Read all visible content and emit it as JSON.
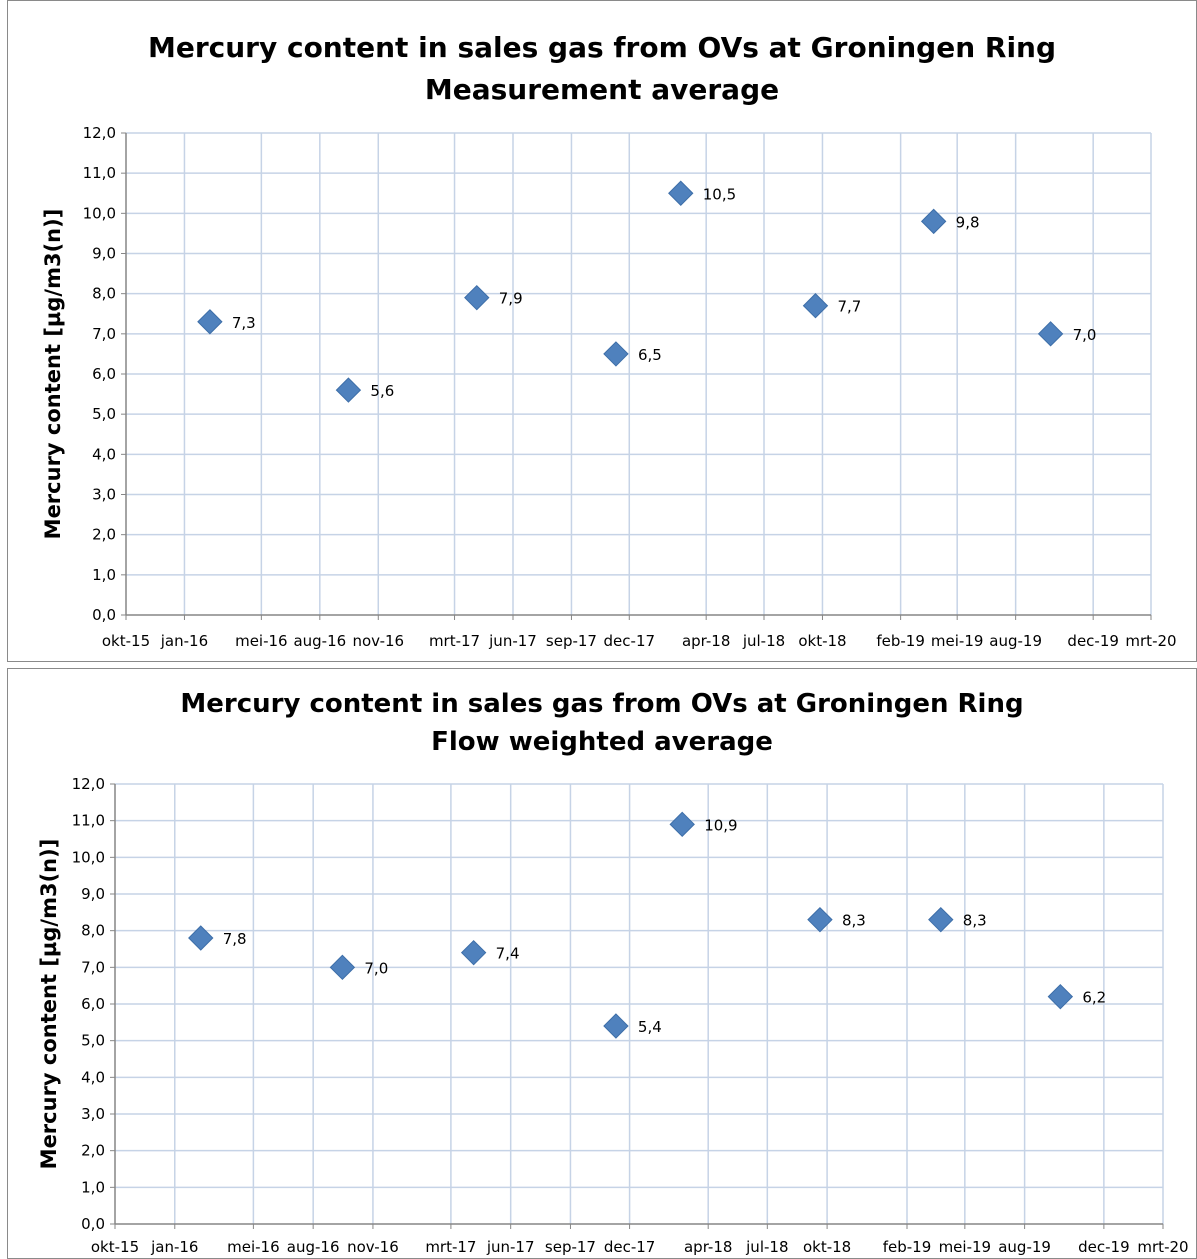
{
  "chart_data": [
    {
      "type": "scatter",
      "title": "Mercury content in sales gas from OVs at Groningen Ring",
      "subtitle": "Measurement average",
      "ylabel": "Mercury content [µg/m3(n)]",
      "xlabel": "",
      "ylim": [
        0,
        12
      ],
      "yticks": [
        "0,0",
        "1,0",
        "2,0",
        "3,0",
        "4,0",
        "5,0",
        "6,0",
        "7,0",
        "8,0",
        "9,0",
        "10,0",
        "11,0",
        "12,0"
      ],
      "xticks": [
        "okt-15",
        "jan-16",
        "mei-16",
        "aug-16",
        "nov-16",
        "mrt-17",
        "jun-17",
        "sep-17",
        "dec-17",
        "apr-18",
        "jul-18",
        "okt-18",
        "feb-19",
        "mei-19",
        "aug-19",
        "dec-19",
        "mrt-20"
      ],
      "grid": true,
      "marker": "diamond",
      "color": "#4f81bd",
      "points": [
        {
          "x": "2016-02-10",
          "y": 7.3,
          "label": "7,3"
        },
        {
          "x": "2016-09-15",
          "y": 5.6,
          "label": "5,6"
        },
        {
          "x": "2017-04-05",
          "y": 7.9,
          "label": "7,9"
        },
        {
          "x": "2017-11-10",
          "y": 6.5,
          "label": "6,5"
        },
        {
          "x": "2018-02-20",
          "y": 10.5,
          "label": "10,5"
        },
        {
          "x": "2018-09-20",
          "y": 7.7,
          "label": "7,7"
        },
        {
          "x": "2019-03-25",
          "y": 9.8,
          "label": "9,8"
        },
        {
          "x": "2019-09-25",
          "y": 7.0,
          "label": "7,0"
        }
      ]
    },
    {
      "type": "scatter",
      "title": "Mercury content in sales gas from OVs at Groningen Ring",
      "subtitle": "Flow weighted average",
      "ylabel": "Mercury content [µg/m3(n)]",
      "xlabel": "",
      "ylim": [
        0,
        12
      ],
      "yticks": [
        "0,0",
        "1,0",
        "2,0",
        "3,0",
        "4,0",
        "5,0",
        "6,0",
        "7,0",
        "8,0",
        "9,0",
        "10,0",
        "11,0",
        "12,0"
      ],
      "xticks": [
        "okt-15",
        "jan-16",
        "mei-16",
        "aug-16",
        "nov-16",
        "mrt-17",
        "jun-17",
        "sep-17",
        "dec-17",
        "apr-18",
        "jul-18",
        "okt-18",
        "feb-19",
        "mei-19",
        "aug-19",
        "dec-19",
        "mrt-20"
      ],
      "grid": true,
      "marker": "diamond",
      "color": "#4f81bd",
      "points": [
        {
          "x": "2016-02-10",
          "y": 7.8,
          "label": "7,8"
        },
        {
          "x": "2016-09-15",
          "y": 7.0,
          "label": "7,0"
        },
        {
          "x": "2017-04-05",
          "y": 7.4,
          "label": "7,4"
        },
        {
          "x": "2017-11-10",
          "y": 5.4,
          "label": "5,4"
        },
        {
          "x": "2018-02-20",
          "y": 10.9,
          "label": "10,9"
        },
        {
          "x": "2018-09-20",
          "y": 8.3,
          "label": "8,3"
        },
        {
          "x": "2019-03-25",
          "y": 8.3,
          "label": "8,3"
        },
        {
          "x": "2019-09-25",
          "y": 6.2,
          "label": "6,2"
        }
      ]
    }
  ]
}
